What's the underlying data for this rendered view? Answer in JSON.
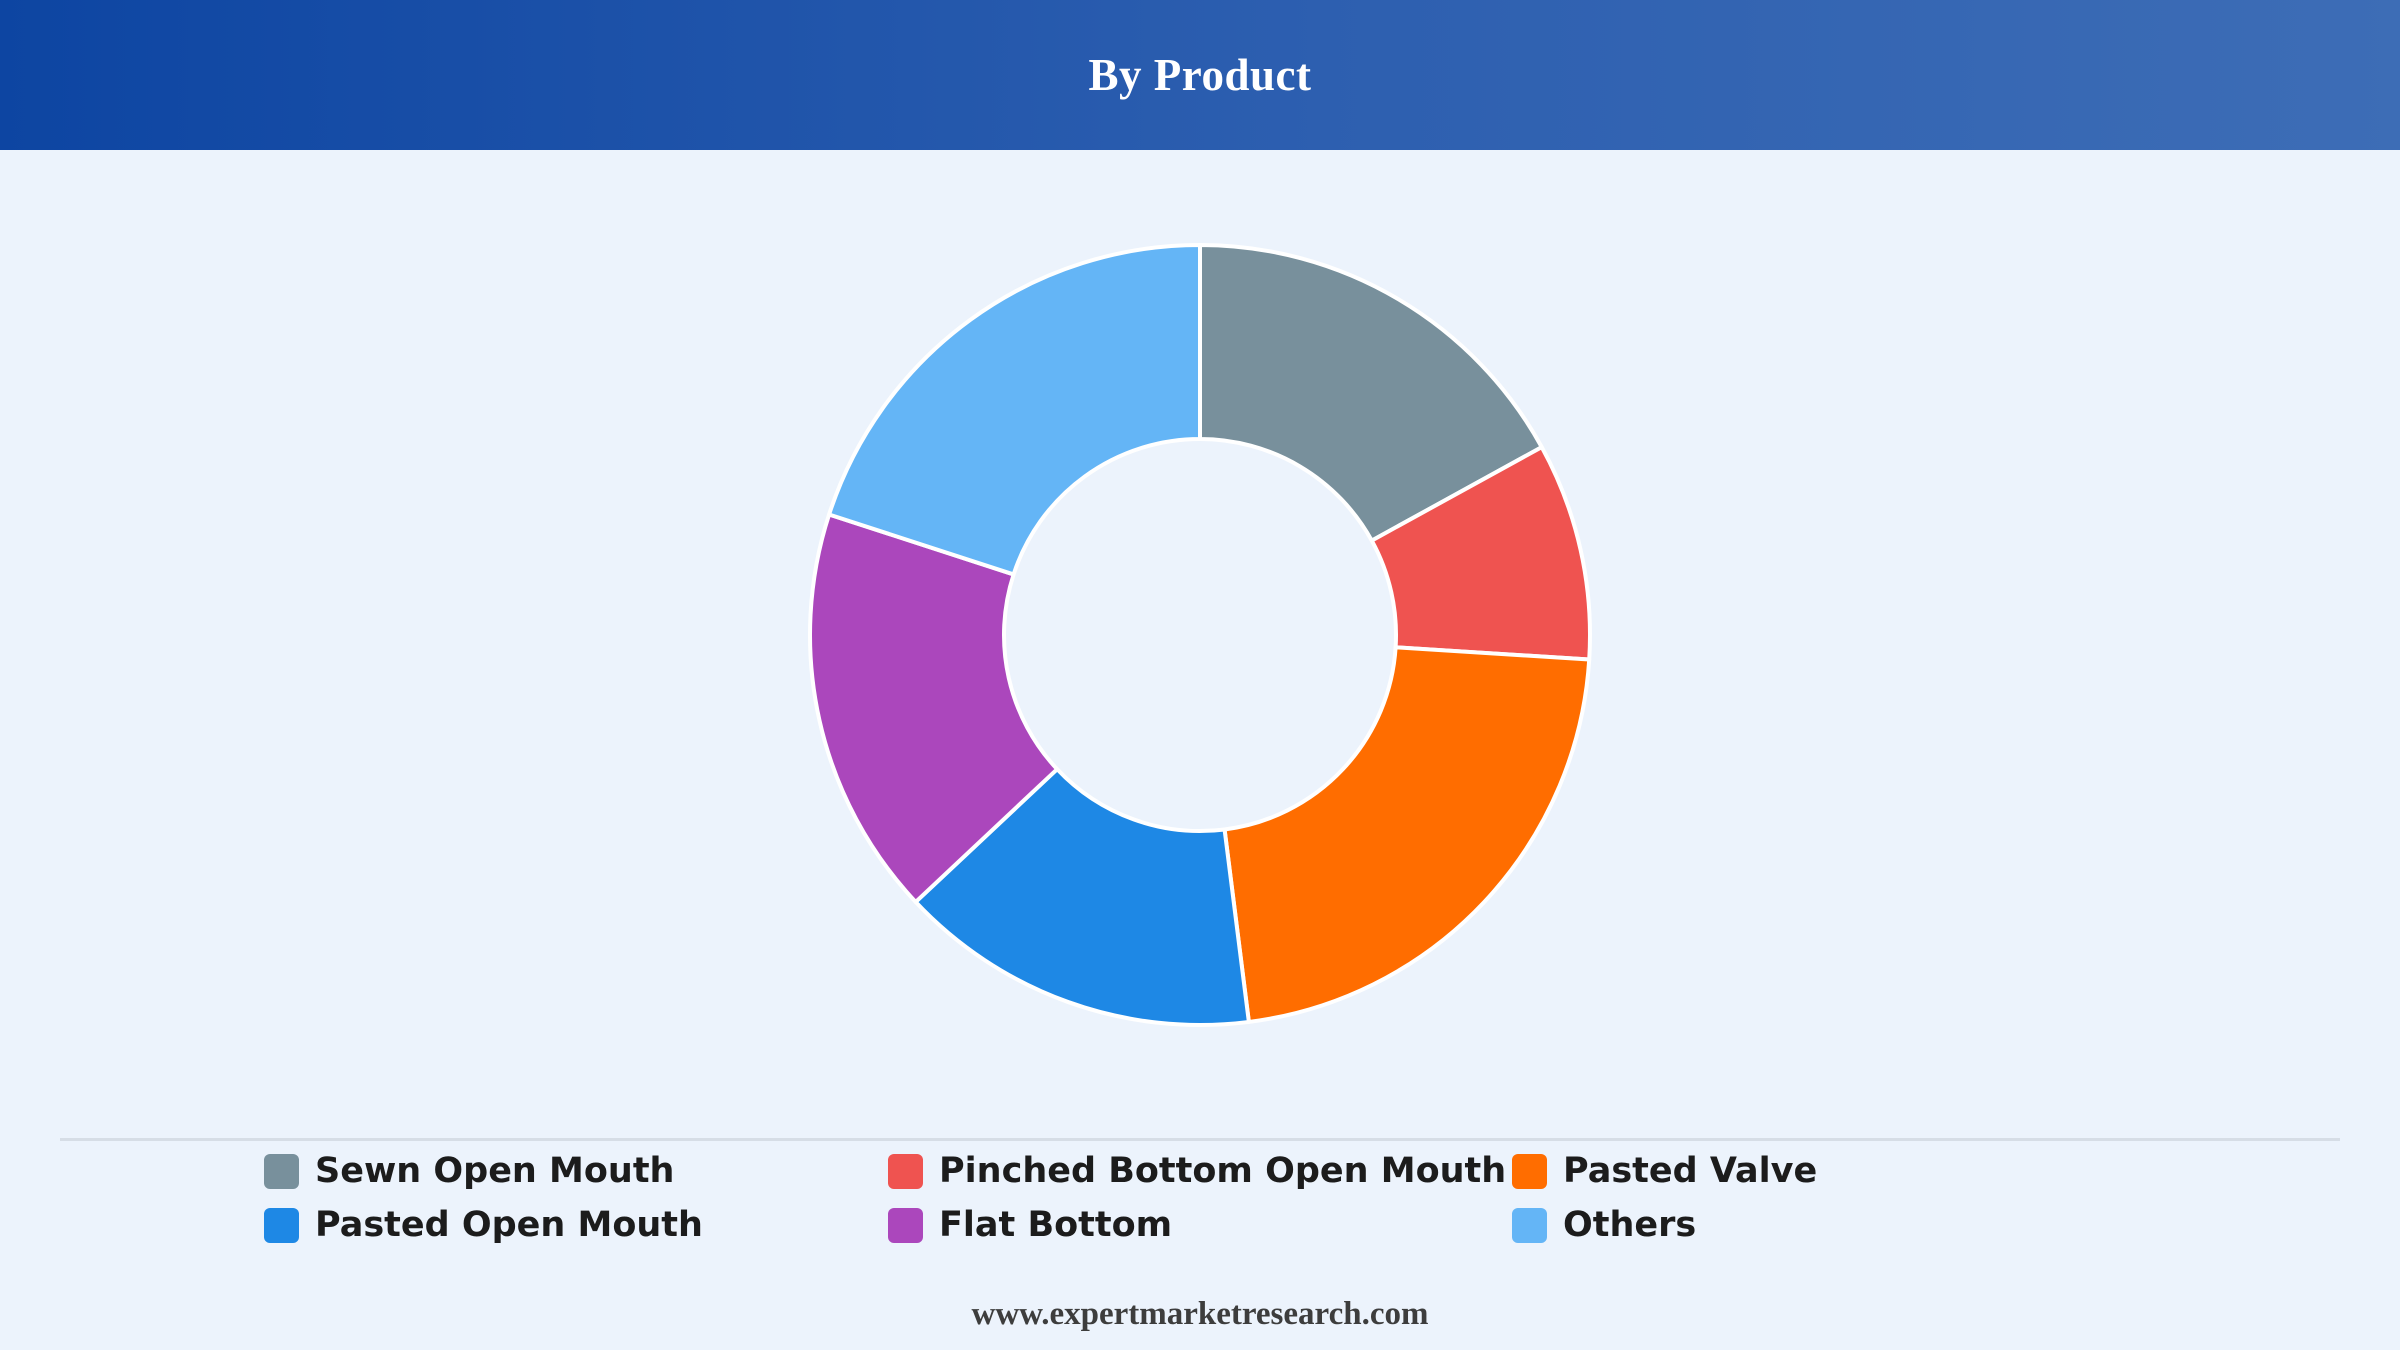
{
  "header": {
    "title": "By Product"
  },
  "chart_data": {
    "type": "pie",
    "variant": "donut",
    "title": "By Product",
    "categories": [
      "Sewn Open Mouth",
      "Pinched Bottom Open Mouth",
      "Pasted Valve",
      "Pasted Open Mouth",
      "Flat Bottom",
      "Others"
    ],
    "values": [
      17,
      9,
      22,
      15,
      17,
      20
    ],
    "unit": "% (approximate share, read from slice angles)",
    "colors": [
      "#78909c",
      "#ef5350",
      "#ff6d00",
      "#1e88e5",
      "#ab47bc",
      "#64b5f6"
    ],
    "legend": "bottom",
    "start": "top, clockwise"
  },
  "legend": {
    "items": [
      {
        "label": "Sewn Open Mouth",
        "color": "#78909c"
      },
      {
        "label": "Pinched Bottom Open Mouth",
        "color": "#ef5350"
      },
      {
        "label": "Pasted Valve",
        "color": "#ff6d00"
      },
      {
        "label": "Pasted Open Mouth",
        "color": "#1e88e5"
      },
      {
        "label": "Flat Bottom",
        "color": "#ab47bc"
      },
      {
        "label": "Others",
        "color": "#64b5f6"
      }
    ]
  },
  "footer": {
    "text": "www.expertmarketresearch.com"
  }
}
